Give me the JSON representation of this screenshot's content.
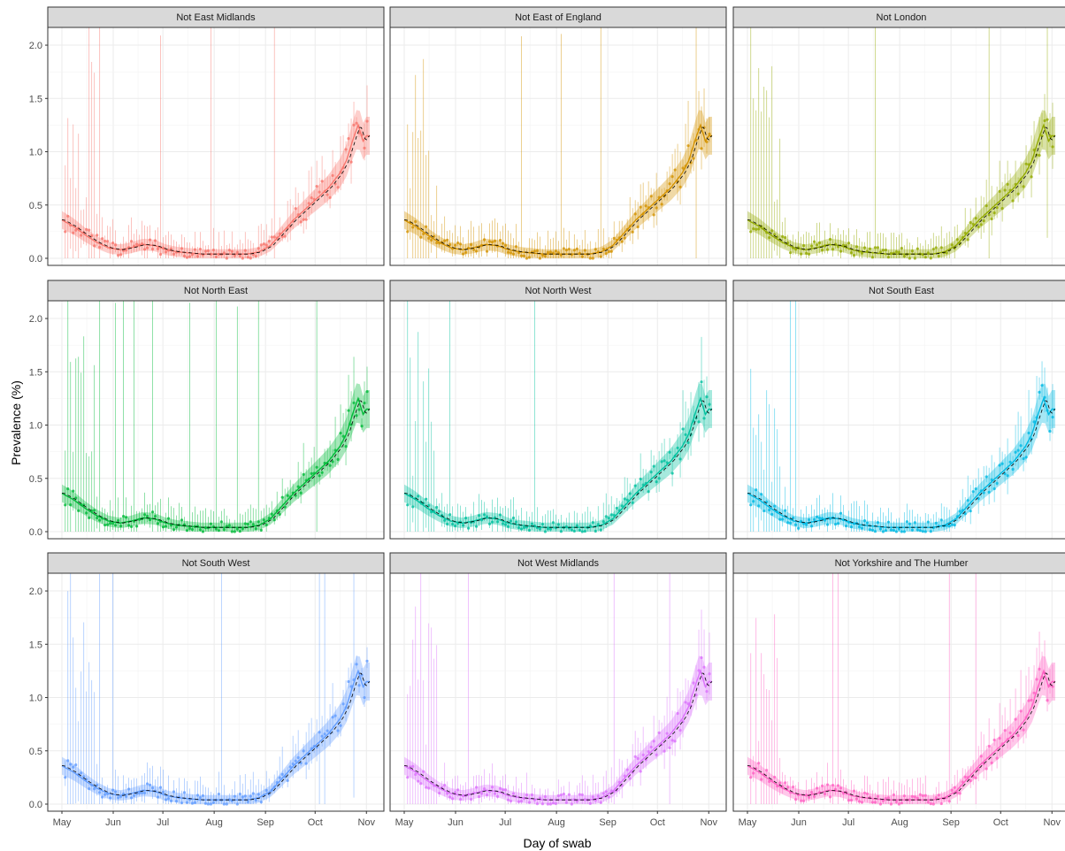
{
  "figure": {
    "ylabel": "Prevalence (%)",
    "xlabel": "Day of swab"
  },
  "chart_data": {
    "type": "line",
    "xlabel": "Day of swab",
    "ylabel": "Prevalence (%)",
    "x_range": [
      "2020-05-01",
      "2020-11-03"
    ],
    "ylim": [
      0,
      2.1
    ],
    "grid": true,
    "x_ticks": [
      {
        "date": "2020-05-01",
        "label": "May"
      },
      {
        "date": "2020-06-01",
        "label": "Jun"
      },
      {
        "date": "2020-07-01",
        "label": "Jul"
      },
      {
        "date": "2020-08-01",
        "label": "Aug"
      },
      {
        "date": "2020-09-01",
        "label": "Sep"
      },
      {
        "date": "2020-10-01",
        "label": "Oct"
      },
      {
        "date": "2020-11-01",
        "label": "Nov"
      }
    ],
    "y_ticks": [
      "0.0",
      "0.5",
      "1.0",
      "1.5",
      "2.0"
    ],
    "y_tick_values": [
      0,
      0.5,
      1.0,
      1.5,
      2.0
    ],
    "smooth_fit": {
      "dates": [
        "2020-05-01",
        "2020-05-08",
        "2020-05-15",
        "2020-05-22",
        "2020-05-29",
        "2020-06-05",
        "2020-06-12",
        "2020-06-19",
        "2020-06-26",
        "2020-07-03",
        "2020-07-10",
        "2020-07-17",
        "2020-07-24",
        "2020-07-31",
        "2020-08-07",
        "2020-08-14",
        "2020-08-21",
        "2020-08-28",
        "2020-09-04",
        "2020-09-11",
        "2020-09-18",
        "2020-09-25",
        "2020-10-02",
        "2020-10-09",
        "2020-10-16",
        "2020-10-20",
        "2020-10-24",
        "2020-10-27",
        "2020-10-30",
        "2020-11-01"
      ],
      "values": [
        0.36,
        0.3,
        0.22,
        0.15,
        0.1,
        0.08,
        0.1,
        0.13,
        0.12,
        0.08,
        0.06,
        0.05,
        0.04,
        0.04,
        0.04,
        0.04,
        0.04,
        0.06,
        0.12,
        0.24,
        0.36,
        0.46,
        0.56,
        0.66,
        0.8,
        0.92,
        1.12,
        1.25,
        1.1,
        1.15
      ]
    },
    "facets": [
      {
        "title": "Not East Midlands",
        "color": "#f8766d"
      },
      {
        "title": "Not East of England",
        "color": "#d39200"
      },
      {
        "title": "Not London",
        "color": "#93aa00"
      },
      {
        "title": "Not North East",
        "color": "#00ba38"
      },
      {
        "title": "Not North West",
        "color": "#00c19f"
      },
      {
        "title": "Not South East",
        "color": "#00b9e3"
      },
      {
        "title": "Not South West",
        "color": "#619cff"
      },
      {
        "title": "Not West Midlands",
        "color": "#db72fb"
      },
      {
        "title": "Not Yorkshire and The Humber",
        "color": "#ff61c3"
      }
    ]
  }
}
